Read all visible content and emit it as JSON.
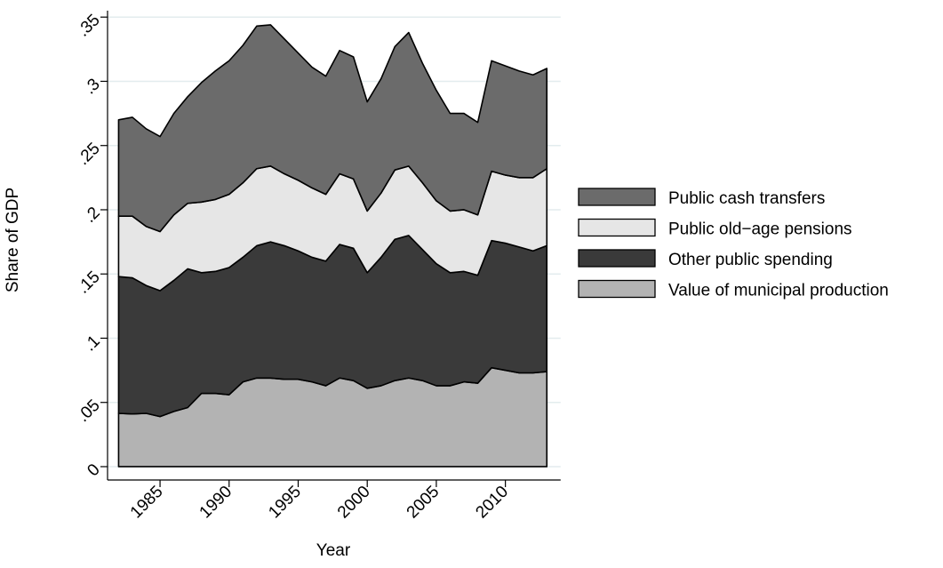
{
  "chart_data": {
    "type": "stacked-area",
    "x_label": "Year",
    "y_label": "Share of GDP",
    "x": [
      1982,
      1983,
      1984,
      1985,
      1986,
      1987,
      1988,
      1989,
      1990,
      1991,
      1992,
      1993,
      1994,
      1995,
      1996,
      1997,
      1998,
      1999,
      2000,
      2001,
      2002,
      2003,
      2004,
      2005,
      2006,
      2007,
      2008,
      2009,
      2010,
      2011,
      2012,
      2013
    ],
    "series": [
      {
        "name": "Value of municipal production",
        "color": "#b3b3b3",
        "values": [
          0.0415,
          0.041,
          0.0415,
          0.039,
          0.043,
          0.046,
          0.057,
          0.057,
          0.056,
          0.066,
          0.069,
          0.069,
          0.068,
          0.068,
          0.066,
          0.063,
          0.069,
          0.067,
          0.061,
          0.063,
          0.067,
          0.069,
          0.067,
          0.063,
          0.063,
          0.066,
          0.065,
          0.077,
          0.075,
          0.073,
          0.073,
          0.074
        ]
      },
      {
        "name": "Other public spending",
        "color": "#3a3a3a",
        "values": [
          0.1065,
          0.106,
          0.0995,
          0.098,
          0.102,
          0.108,
          0.094,
          0.095,
          0.099,
          0.097,
          0.103,
          0.106,
          0.104,
          0.1,
          0.097,
          0.097,
          0.104,
          0.103,
          0.09,
          0.1,
          0.11,
          0.111,
          0.102,
          0.095,
          0.088,
          0.086,
          0.084,
          0.099,
          0.099,
          0.098,
          0.095,
          0.098
        ]
      },
      {
        "name": "Public old−age pensions",
        "color": "#e6e6e6",
        "values": [
          0.047,
          0.048,
          0.046,
          0.046,
          0.051,
          0.051,
          0.055,
          0.056,
          0.057,
          0.058,
          0.06,
          0.059,
          0.056,
          0.055,
          0.054,
          0.052,
          0.055,
          0.054,
          0.048,
          0.05,
          0.054,
          0.054,
          0.052,
          0.049,
          0.048,
          0.048,
          0.047,
          0.054,
          0.053,
          0.054,
          0.057,
          0.06
        ]
      },
      {
        "name": "Public cash transfers",
        "color": "#6b6b6b",
        "values": [
          0.075,
          0.077,
          0.076,
          0.074,
          0.079,
          0.083,
          0.093,
          0.1,
          0.104,
          0.107,
          0.111,
          0.11,
          0.105,
          0.099,
          0.094,
          0.092,
          0.096,
          0.095,
          0.085,
          0.089,
          0.096,
          0.104,
          0.093,
          0.086,
          0.076,
          0.075,
          0.072,
          0.086,
          0.085,
          0.083,
          0.08,
          0.078
        ]
      }
    ],
    "xlim": [
      1981.2,
      2014
    ],
    "xticks": [
      1985,
      1990,
      1995,
      2000,
      2005,
      2010
    ],
    "ylim": [
      -0.0104,
      0.355
    ],
    "yticks": [
      0,
      {
        "value": 0.05,
        "label": ".05"
      },
      {
        "value": 0.1,
        "label": ".1"
      },
      {
        "value": 0.15,
        "label": ".15"
      },
      {
        "value": 0.2,
        "label": ".2"
      },
      {
        "value": 0.25,
        "label": ".25"
      },
      {
        "value": 0.3,
        "label": ".3"
      },
      {
        "value": 0.35,
        "label": ".35"
      }
    ],
    "grid": true,
    "legend": "right"
  }
}
